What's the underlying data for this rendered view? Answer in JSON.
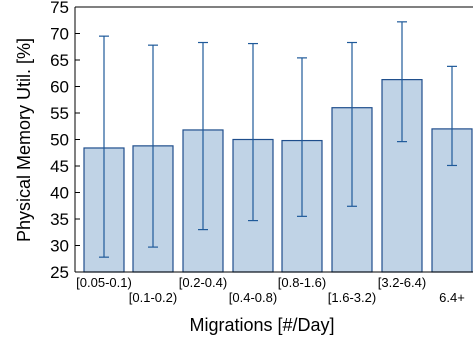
{
  "chart_data": {
    "type": "bar",
    "xlabel": "Migrations [#/Day]",
    "ylabel": "Physical Memory Util. [%]",
    "ylim": [
      25,
      75
    ],
    "yticks": [
      25,
      30,
      35,
      40,
      45,
      50,
      55,
      60,
      65,
      70,
      75
    ],
    "categories": [
      "[0.05-0.1)",
      "[0.1-0.2)",
      "[0.2-0.4)",
      "[0.4-0.8)",
      "[0.8-1.6)",
      "[1.6-3.2)",
      "[3.2-6.4)",
      "6.4+"
    ],
    "values": [
      48.4,
      48.8,
      51.8,
      50.0,
      49.8,
      56.0,
      61.3,
      52.0
    ],
    "error_low": [
      27.8,
      29.7,
      33.0,
      34.7,
      35.5,
      37.4,
      49.6,
      45.1
    ],
    "error_high": [
      69.5,
      67.8,
      68.3,
      68.1,
      65.4,
      68.3,
      72.2,
      63.8
    ],
    "grid": false,
    "colors": {
      "bar_fill": "#c0d3e6",
      "bar_edge": "#1f4e8c",
      "error_bar": "#1f5a9a"
    }
  }
}
